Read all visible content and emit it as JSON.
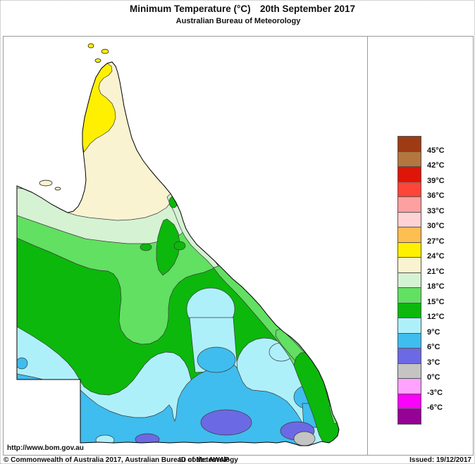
{
  "header": {
    "title": "Minimum Temperature (°C)",
    "date": "20th September 2017",
    "subtitle": "Australian Bureau of Meteorology"
  },
  "map": {
    "region": "Queensland, Australia",
    "band_colors": {
      "yellow": "#FFF000",
      "cream": "#F9F3D1",
      "pale_green": "#D5F2D3",
      "light_green": "#62E062",
      "green": "#0CB80C",
      "light_cyan": "#AEF0FA",
      "blue": "#3FBDEE",
      "blue_violet": "#6C69E4",
      "gray": "#C4C4C4"
    },
    "outline_color": "#000000"
  },
  "legend": {
    "unit": "°C",
    "entries": [
      {
        "color": "#9E3B14",
        "label": "45°C"
      },
      {
        "color": "#B3763F",
        "label": "42°C"
      },
      {
        "color": "#DE1508",
        "label": "39°C"
      },
      {
        "color": "#FF453A",
        "label": "36°C"
      },
      {
        "color": "#FFA0A0",
        "label": "33°C"
      },
      {
        "color": "#FFD2D4",
        "label": "30°C"
      },
      {
        "color": "#FFBE50",
        "label": "27°C"
      },
      {
        "color": "#FFF000",
        "label": "24°C"
      },
      {
        "color": "#F9F3D1",
        "label": "21°C"
      },
      {
        "color": "#D5F2D3",
        "label": "18°C"
      },
      {
        "color": "#62E062",
        "label": "15°C"
      },
      {
        "color": "#0CB80C",
        "label": "12°C"
      },
      {
        "color": "#AEF0FA",
        "label": "9°C"
      },
      {
        "color": "#3FBDEE",
        "label": "6°C"
      },
      {
        "color": "#6C69E4",
        "label": "3°C"
      },
      {
        "color": "#C4C4C4",
        "label": "0°C"
      },
      {
        "color": "#FFA3FF",
        "label": "-3°C"
      },
      {
        "color": "#FB03FB",
        "label": "-6°C"
      },
      {
        "color": "#950295",
        "label": ""
      }
    ]
  },
  "footer": {
    "url": "http://www.bom.gov.au",
    "copyright": "© Commonwealth of Australia 2017, Australian Bureau of Meteorology",
    "id_code": "ID code: AWAP",
    "issued": "Issued: 19/12/2017"
  }
}
